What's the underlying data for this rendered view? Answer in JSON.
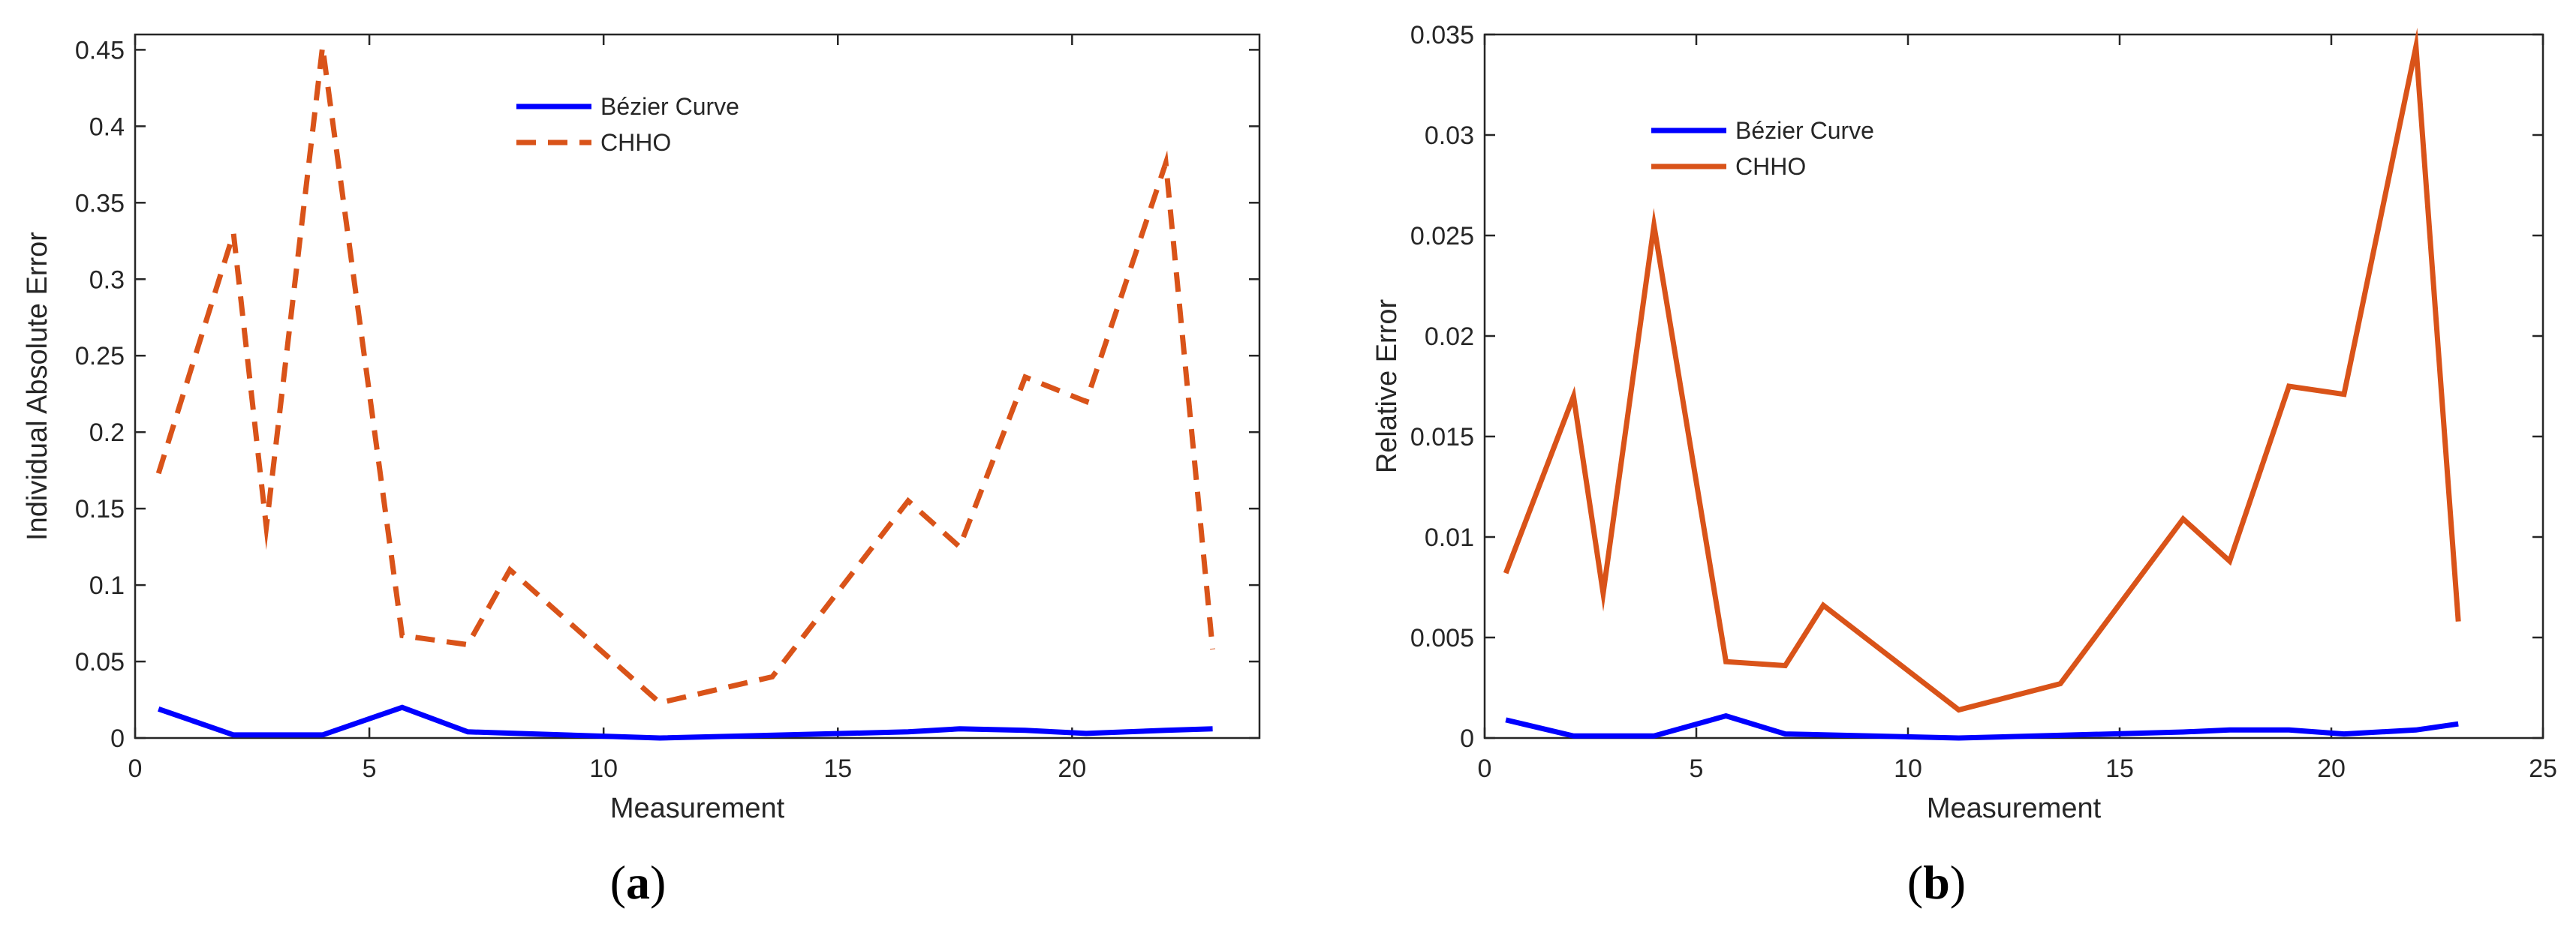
{
  "chart_data": [
    {
      "type": "line",
      "xlabel": "Measurement",
      "ylabel": "Individual Absolute Error",
      "xlim": [
        0,
        24
      ],
      "ylim": [
        0,
        0.46
      ],
      "xticks": [
        0,
        5,
        10,
        15,
        20
      ],
      "yticks": [
        0,
        0.05,
        0.1,
        0.15,
        0.2,
        0.25,
        0.3,
        0.35,
        0.4,
        0.45
      ],
      "ytick_labels": [
        "0",
        "0.05",
        "0.1",
        "0.15",
        "0.2",
        "0.25",
        "0.3",
        "0.35",
        "0.4",
        "0.45"
      ],
      "legend_position": "top-center",
      "panel_label": "a",
      "series": [
        {
          "name": "Bézier Curve",
          "color": "#0000ff",
          "style": "solid",
          "x": [
            0.5,
            2.1,
            4.0,
            5.7,
            7.1,
            11.2,
            16.5,
            17.6,
            19.0,
            20.3,
            22.0,
            23.0
          ],
          "y": [
            0.019,
            0.002,
            0.002,
            0.02,
            0.004,
            0.0,
            0.004,
            0.006,
            0.005,
            0.003,
            0.005,
            0.006
          ]
        },
        {
          "name": "CHHO",
          "color": "#d95319",
          "style": "dashed",
          "x": [
            0.5,
            2.1,
            2.8,
            4.0,
            5.7,
            7.1,
            8.0,
            11.2,
            13.6,
            16.5,
            17.6,
            19.0,
            20.3,
            22.0,
            23.0
          ],
          "y": [
            0.173,
            0.33,
            0.138,
            0.452,
            0.067,
            0.061,
            0.11,
            0.023,
            0.04,
            0.155,
            0.125,
            0.236,
            0.22,
            0.376,
            0.058
          ]
        }
      ]
    },
    {
      "type": "line",
      "xlabel": "Measurement",
      "ylabel": "Relative Error",
      "xlim": [
        0,
        25
      ],
      "ylim": [
        0,
        0.035
      ],
      "xticks": [
        0,
        5,
        10,
        15,
        20,
        25
      ],
      "yticks": [
        0,
        0.005,
        0.01,
        0.015,
        0.02,
        0.025,
        0.03,
        0.035
      ],
      "ytick_labels": [
        "0",
        "0.005",
        "0.01",
        "0.015",
        "0.02",
        "0.025",
        "0.03",
        "0.035"
      ],
      "legend_position": "top-left",
      "panel_label": "b",
      "series": [
        {
          "name": "Bézier Curve",
          "color": "#0000ff",
          "style": "solid",
          "x": [
            0.5,
            2.1,
            4.0,
            5.7,
            7.1,
            11.2,
            16.5,
            17.6,
            19.0,
            20.3,
            22.0,
            23.0
          ],
          "y": [
            0.0009,
            0.0001,
            0.0001,
            0.0011,
            0.0002,
            0.0,
            0.0003,
            0.0004,
            0.0004,
            0.0002,
            0.0004,
            0.0007
          ]
        },
        {
          "name": "CHHO",
          "color": "#d95319",
          "style": "solid",
          "x": [
            0.5,
            2.1,
            2.8,
            4.0,
            5.7,
            7.1,
            8.0,
            11.2,
            13.6,
            16.5,
            17.6,
            19.0,
            20.3,
            22.0,
            23.0
          ],
          "y": [
            0.0082,
            0.017,
            0.0072,
            0.0255,
            0.0038,
            0.0036,
            0.0066,
            0.0014,
            0.0027,
            0.0109,
            0.0088,
            0.0175,
            0.0171,
            0.0344,
            0.0058
          ]
        }
      ]
    }
  ]
}
